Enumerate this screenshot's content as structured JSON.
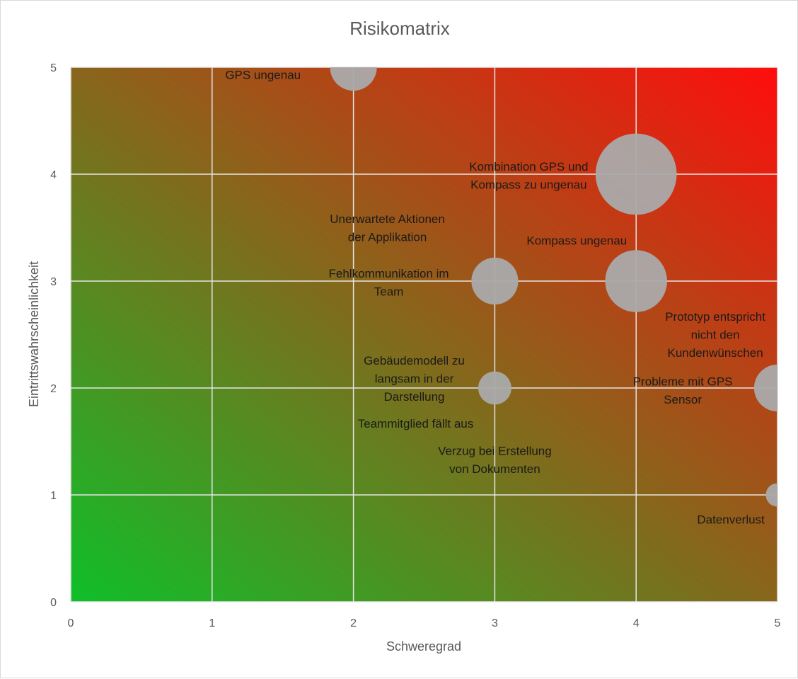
{
  "chart_data": {
    "type": "bubble",
    "title": "Risikomatrix",
    "xlabel": "Schweregrad",
    "ylabel": "Eintrittswahrscheinlichkeit",
    "xlim": [
      0,
      5
    ],
    "ylim": [
      0,
      5
    ],
    "x_ticks": [
      "0",
      "1",
      "2",
      "3",
      "4",
      "5"
    ],
    "y_ticks": [
      "0",
      "1",
      "2",
      "3",
      "4",
      "5"
    ],
    "grid": true,
    "legend": "none",
    "background": {
      "type": "gradient",
      "from": "#0fbf2a",
      "to": "#ff0d0d",
      "direction": "bottom-left to top-right"
    },
    "bubble_color": "#aaaaaa",
    "bubbles": [
      {
        "x": 2,
        "y": 5,
        "size": 2
      },
      {
        "x": 4,
        "y": 4,
        "size": 6
      },
      {
        "x": 3,
        "y": 3,
        "size": 2
      },
      {
        "x": 4,
        "y": 3,
        "size": 3.5
      },
      {
        "x": 3,
        "y": 2,
        "size": 1
      },
      {
        "x": 5,
        "y": 2,
        "size": 2
      },
      {
        "x": 5,
        "y": 1,
        "size": 0.5
      }
    ],
    "labels": [
      {
        "text": "GPS ungenau",
        "lines": [
          "GPS ungenau"
        ],
        "x": 1.36,
        "y": 4.93
      },
      {
        "text": "Kombination GPS und Kompass zu ungenau",
        "lines": [
          "Kombination GPS und",
          "Kompass zu ungenau"
        ],
        "x": 3.24,
        "y": 3.99
      },
      {
        "text": "Unerwartete Aktionen der Applikation",
        "lines": [
          "Unerwartete Aktionen",
          "der Applikation"
        ],
        "x": 2.24,
        "y": 3.5
      },
      {
        "text": "Kompass ungenau",
        "lines": [
          "Kompass ungenau"
        ],
        "x": 3.58,
        "y": 3.38
      },
      {
        "text": "Fehlkommunikation im Team",
        "lines": [
          "Fehlkommunikation im",
          "Team"
        ],
        "x": 2.25,
        "y": 2.99
      },
      {
        "text": "Prototyp entspricht nicht den Kundenwünschen",
        "lines": [
          "Prototyp entspricht",
          "nicht den",
          "Kundenwünschen"
        ],
        "x": 4.56,
        "y": 2.5
      },
      {
        "text": "Gebäudemodell zu langsam in der Darstellung",
        "lines": [
          "Gebäudemodell zu",
          "langsam in der",
          "Darstellung"
        ],
        "x": 2.43,
        "y": 2.09
      },
      {
        "text": "Probleme mit GPS Sensor",
        "lines": [
          "Probleme mit GPS",
          "Sensor"
        ],
        "x": 4.33,
        "y": 1.98
      },
      {
        "text": "Teammitglied fällt aus",
        "lines": [
          "Teammitglied fällt aus"
        ],
        "x": 2.44,
        "y": 1.67
      },
      {
        "text": "Verzug bei Erstellung von Dokumenten",
        "lines": [
          "Verzug bei Erstellung",
          "von Dokumenten"
        ],
        "x": 3.0,
        "y": 1.33
      },
      {
        "text": "Datenverlust",
        "lines": [
          "Datenverlust"
        ],
        "x": 4.67,
        "y": 0.77
      }
    ]
  }
}
